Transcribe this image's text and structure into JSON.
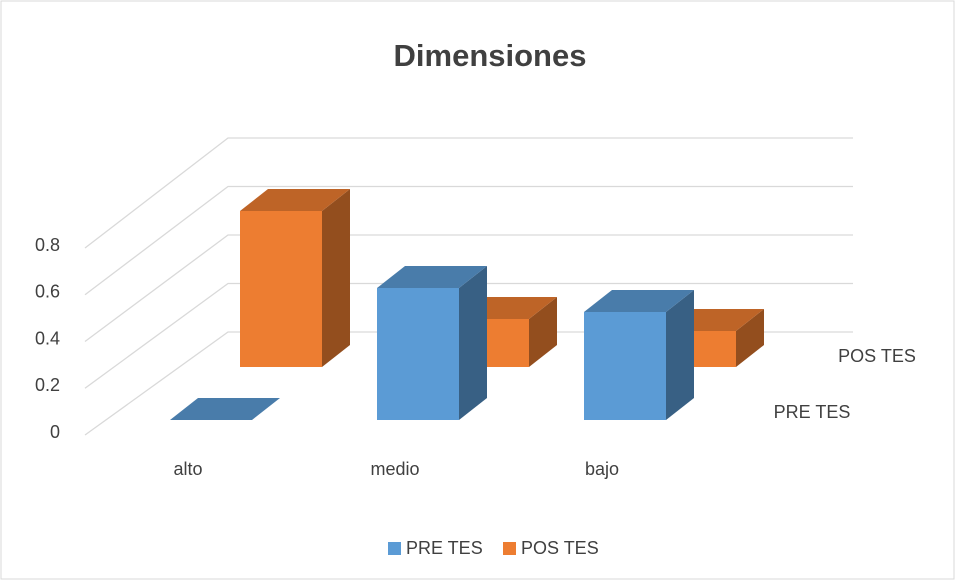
{
  "chart_data": {
    "type": "bar3d",
    "title": "Dimensiones",
    "categories": [
      "alto",
      "medio",
      "bajo"
    ],
    "series": [
      {
        "name": "PRE TES",
        "color": "#5b9bd5",
        "values": [
          0,
          0.55,
          0.45
        ]
      },
      {
        "name": "POS TES",
        "color": "#ed7d31",
        "values": [
          0.65,
          0.2,
          0.15
        ]
      }
    ],
    "ylim": [
      0,
      0.8
    ],
    "yticks": [
      0,
      0.2,
      0.4,
      0.6,
      0.8
    ],
    "grid": true,
    "legend": "bottom"
  }
}
